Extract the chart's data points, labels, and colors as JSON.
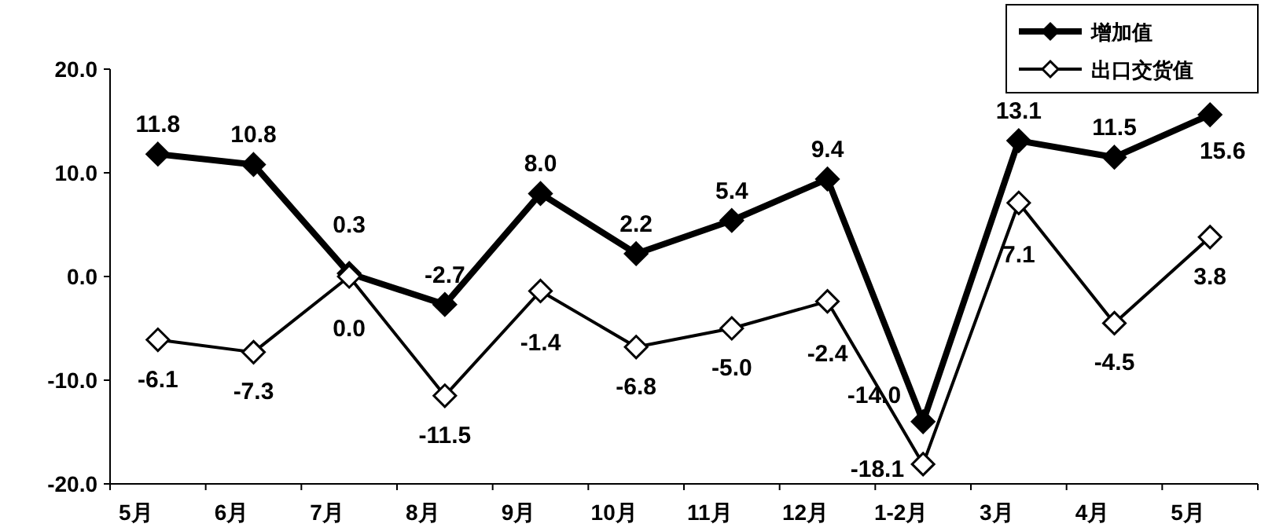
{
  "chart_data": {
    "type": "line",
    "categories": [
      "5月",
      "6月",
      "7月",
      "8月",
      "9月",
      "10月",
      "11月",
      "12月",
      "1-2月",
      "3月",
      "4月",
      "5月"
    ],
    "series": [
      {
        "name": "增加值",
        "color": "#000000",
        "values": [
          11.8,
          10.8,
          0.3,
          -2.7,
          8.0,
          2.2,
          5.4,
          9.4,
          -14.0,
          13.1,
          11.5,
          15.6
        ],
        "value_labels": [
          "11.8",
          "10.8",
          "0.3",
          "-2.7",
          "8.0",
          "2.2",
          "5.4",
          "9.4",
          "-14.0",
          "13.1",
          "11.5",
          "15.6"
        ]
      },
      {
        "name": "出口交货值",
        "color": "#000000",
        "values": [
          -6.1,
          -7.3,
          0.0,
          -11.5,
          -1.4,
          -6.8,
          -5.0,
          -2.4,
          -18.1,
          7.1,
          -4.5,
          3.8
        ],
        "value_labels": [
          "-6.1",
          "-7.3",
          "0.0",
          "-11.5",
          "-1.4",
          "-6.8",
          "-5.0",
          "-2.4",
          "-18.1",
          "7.1",
          "-4.5",
          "3.8"
        ]
      }
    ],
    "ylim": [
      -20,
      20
    ],
    "yticks": [
      {
        "value": -20,
        "label": "-20.0"
      },
      {
        "value": -10,
        "label": "-10.0"
      },
      {
        "value": 0,
        "label": "0.0"
      },
      {
        "value": 10,
        "label": "10.0"
      },
      {
        "value": 20,
        "label": "20.0"
      }
    ],
    "grid": false,
    "legend": "top right",
    "marker": "diamond",
    "line_style": "solid"
  }
}
